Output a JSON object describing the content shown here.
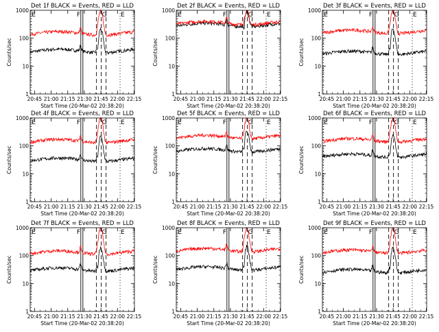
{
  "figure": {
    "background": "#ffffff",
    "colors": {
      "events": "#000000",
      "lld": "#ff0000",
      "axis": "#000000"
    }
  },
  "chart_data": [
    {
      "type": "line",
      "title": "Det 1f BLACK = Events, RED = LLD",
      "ylabel": "Counts/sec",
      "xlabel": "Start Time (20-Mar-02 20:38:20)",
      "y_scale": "log",
      "ylim": [
        1,
        1000
      ],
      "y_ticks": [
        "1",
        "10",
        "100",
        "1000"
      ],
      "x_ticks": [
        "20:45",
        "21:00",
        "21:15",
        "21:30",
        "21:45",
        "22:00",
        "22:15"
      ],
      "x_range_minutes": [
        2.7,
        97.0
      ],
      "markers": [
        {
          "label": "E",
          "x": 3.5,
          "style": "dotted"
        },
        {
          "label": "F",
          "x": 48.5,
          "style": "solid"
        },
        {
          "label": "G",
          "x": 67.0,
          "style": "dashed"
        },
        {
          "label": "E",
          "x": 84.0,
          "style": "dotted"
        }
      ],
      "series": [
        {
          "name": "Events",
          "color": "#000000",
          "baseline": 35,
          "peak": 220
        },
        {
          "name": "LLD",
          "color": "#ff0000",
          "baseline": 150,
          "peak": 1000
        }
      ]
    },
    {
      "type": "line",
      "title": "Det 2f BLACK = Events, RED = LLD",
      "ylabel": "Counts/sec",
      "xlabel": "Start Time (20-Mar-02 20:38:20)",
      "y_scale": "log",
      "ylim": [
        1,
        1000
      ],
      "y_ticks": [
        "1",
        "10",
        "100",
        "1000"
      ],
      "x_ticks": [
        "20:45",
        "21:00",
        "21:15",
        "21:30",
        "21:45",
        "22:00",
        "22:15"
      ],
      "x_range_minutes": [
        2.7,
        97.0
      ],
      "markers": [
        {
          "label": "E",
          "x": 3.5,
          "style": "dotted"
        },
        {
          "label": "F",
          "x": 48.5,
          "style": "solid"
        },
        {
          "label": "G",
          "x": 67.0,
          "style": "dashed"
        },
        {
          "label": "E",
          "x": 84.0,
          "style": "dotted"
        }
      ],
      "series": [
        {
          "name": "Events",
          "color": "#000000",
          "baseline": 300,
          "peak": 900
        },
        {
          "name": "LLD",
          "color": "#ff0000",
          "baseline": 350,
          "peak": 1000
        }
      ]
    },
    {
      "type": "line",
      "title": "Det 3f BLACK = Events, RED = LLD",
      "ylabel": "Counts/sec",
      "xlabel": "Start Time (20-Mar-02 20:38:20)",
      "y_scale": "log",
      "ylim": [
        1,
        1000
      ],
      "y_ticks": [
        "1",
        "10",
        "100",
        "1000"
      ],
      "x_ticks": [
        "20:45",
        "21:00",
        "21:15",
        "21:30",
        "21:45",
        "22:00",
        "22:15"
      ],
      "x_range_minutes": [
        2.7,
        97.0
      ],
      "markers": [
        {
          "label": "E",
          "x": 3.5,
          "style": "dotted"
        },
        {
          "label": "F",
          "x": 48.5,
          "style": "solid"
        },
        {
          "label": "G",
          "x": 67.0,
          "style": "dashed"
        },
        {
          "label": "E",
          "x": 84.0,
          "style": "dotted"
        }
      ],
      "series": [
        {
          "name": "Events",
          "color": "#000000",
          "baseline": 30,
          "peak": 220
        },
        {
          "name": "LLD",
          "color": "#ff0000",
          "baseline": 170,
          "peak": 1000
        }
      ]
    },
    {
      "type": "line",
      "title": "Det 4f BLACK = Events, RED = LLD",
      "ylabel": "Counts/sec",
      "xlabel": "Start Time (20-Mar-02 20:38:20)",
      "y_scale": "log",
      "ylim": [
        1,
        1000
      ],
      "y_ticks": [
        "1",
        "10",
        "100",
        "1000"
      ],
      "x_ticks": [
        "20:45",
        "21:00",
        "21:15",
        "21:30",
        "21:45",
        "22:00",
        "22:15"
      ],
      "x_range_minutes": [
        2.7,
        97.0
      ],
      "markers": [
        {
          "label": "E",
          "x": 3.5,
          "style": "dotted"
        },
        {
          "label": "F",
          "x": 48.5,
          "style": "solid"
        },
        {
          "label": "G",
          "x": 67.0,
          "style": "dashed"
        },
        {
          "label": "E",
          "x": 84.0,
          "style": "dotted"
        }
      ],
      "series": [
        {
          "name": "Events",
          "color": "#000000",
          "baseline": 32,
          "peak": 220
        },
        {
          "name": "LLD",
          "color": "#ff0000",
          "baseline": 150,
          "peak": 1000
        }
      ]
    },
    {
      "type": "line",
      "title": "Det 5f BLACK = Events, RED = LLD",
      "ylabel": "Counts/sec",
      "xlabel": "Start Time (20-Mar-02 20:38:20)",
      "y_scale": "log",
      "ylim": [
        1,
        1000
      ],
      "y_ticks": [
        "1",
        "10",
        "100",
        "1000"
      ],
      "x_ticks": [
        "20:45",
        "21:00",
        "21:15",
        "21:30",
        "21:45",
        "22:00",
        "22:15"
      ],
      "x_range_minutes": [
        2.7,
        97.0
      ],
      "markers": [
        {
          "label": "E",
          "x": 3.5,
          "style": "dotted"
        },
        {
          "label": "F",
          "x": 48.5,
          "style": "solid"
        },
        {
          "label": "G",
          "x": 67.0,
          "style": "dashed"
        },
        {
          "label": "E",
          "x": 84.0,
          "style": "dotted"
        }
      ],
      "series": [
        {
          "name": "Events",
          "color": "#000000",
          "baseline": 70,
          "peak": 350
        },
        {
          "name": "LLD",
          "color": "#ff0000",
          "baseline": 210,
          "peak": 1000
        }
      ]
    },
    {
      "type": "line",
      "title": "Det 6f BLACK = Events, RED = LLD",
      "ylabel": "Counts/sec",
      "xlabel": "Start Time (20-Mar-02 20:38:20)",
      "y_scale": "log",
      "ylim": [
        1,
        1000
      ],
      "y_ticks": [
        "1",
        "10",
        "100",
        "1000"
      ],
      "x_ticks": [
        "20:45",
        "21:00",
        "21:15",
        "21:30",
        "21:45",
        "22:00",
        "22:15"
      ],
      "x_range_minutes": [
        2.7,
        97.0
      ],
      "markers": [
        {
          "label": "E",
          "x": 3.5,
          "style": "dotted"
        },
        {
          "label": "F",
          "x": 48.5,
          "style": "solid"
        },
        {
          "label": "G",
          "x": 67.0,
          "style": "dashed"
        },
        {
          "label": "E",
          "x": 84.0,
          "style": "dotted"
        }
      ],
      "series": [
        {
          "name": "Events",
          "color": "#000000",
          "baseline": 45,
          "peak": 250
        },
        {
          "name": "LLD",
          "color": "#ff0000",
          "baseline": 160,
          "peak": 1000
        }
      ]
    },
    {
      "type": "line",
      "title": "Det 7f BLACK = Events, RED = LLD",
      "ylabel": "Counts/sec",
      "xlabel": "Start Time (20-Mar-02 20:38:20)",
      "y_scale": "log",
      "ylim": [
        1,
        1000
      ],
      "y_ticks": [
        "1",
        "10",
        "100",
        "1000"
      ],
      "x_ticks": [
        "20:45",
        "21:00",
        "21:15",
        "21:30",
        "21:45",
        "22:00",
        "22:15"
      ],
      "x_range_minutes": [
        2.7,
        97.0
      ],
      "markers": [
        {
          "label": "E",
          "x": 3.5,
          "style": "dotted"
        },
        {
          "label": "F",
          "x": 48.5,
          "style": "solid"
        },
        {
          "label": "G",
          "x": 67.0,
          "style": "dashed"
        },
        {
          "label": "E",
          "x": 84.0,
          "style": "dotted"
        }
      ],
      "series": [
        {
          "name": "Events",
          "color": "#000000",
          "baseline": 32,
          "peak": 200
        },
        {
          "name": "LLD",
          "color": "#ff0000",
          "baseline": 130,
          "peak": 1000
        }
      ]
    },
    {
      "type": "line",
      "title": "Det 8f BLACK = Events, RED = LLD",
      "ylabel": "Counts/sec",
      "xlabel": "Start Time (20-Mar-02 20:38:20)",
      "y_scale": "log",
      "ylim": [
        1,
        1000
      ],
      "y_ticks": [
        "1",
        "10",
        "100",
        "1000"
      ],
      "x_ticks": [
        "20:45",
        "21:00",
        "21:15",
        "21:30",
        "21:45",
        "22:00",
        "22:15"
      ],
      "x_range_minutes": [
        2.7,
        97.0
      ],
      "markers": [
        {
          "label": "E",
          "x": 3.5,
          "style": "dotted"
        },
        {
          "label": "F",
          "x": 48.5,
          "style": "solid"
        },
        {
          "label": "G",
          "x": 67.0,
          "style": "dashed"
        },
        {
          "label": "E",
          "x": 84.0,
          "style": "dotted"
        }
      ],
      "series": [
        {
          "name": "Events",
          "color": "#000000",
          "baseline": 35,
          "peak": 220
        },
        {
          "name": "LLD",
          "color": "#ff0000",
          "baseline": 160,
          "peak": 1000
        }
      ]
    },
    {
      "type": "line",
      "title": "Det 9f BLACK = Events, RED = LLD",
      "ylabel": "Counts/sec",
      "xlabel": "Start Time (20-Mar-02 20:38:20)",
      "y_scale": "log",
      "ylim": [
        1,
        1000
      ],
      "y_ticks": [
        "1",
        "10",
        "100",
        "1000"
      ],
      "x_ticks": [
        "20:45",
        "21:00",
        "21:15",
        "21:30",
        "21:45",
        "22:00",
        "22:15"
      ],
      "x_range_minutes": [
        2.7,
        97.0
      ],
      "markers": [
        {
          "label": "E",
          "x": 3.5,
          "style": "dotted"
        },
        {
          "label": "F",
          "x": 48.5,
          "style": "solid"
        },
        {
          "label": "G",
          "x": 67.0,
          "style": "dashed"
        },
        {
          "label": "E",
          "x": 84.0,
          "style": "dotted"
        }
      ],
      "series": [
        {
          "name": "Events",
          "color": "#000000",
          "baseline": 28,
          "peak": 200
        },
        {
          "name": "LLD",
          "color": "#ff0000",
          "baseline": 140,
          "peak": 1000
        }
      ]
    }
  ]
}
